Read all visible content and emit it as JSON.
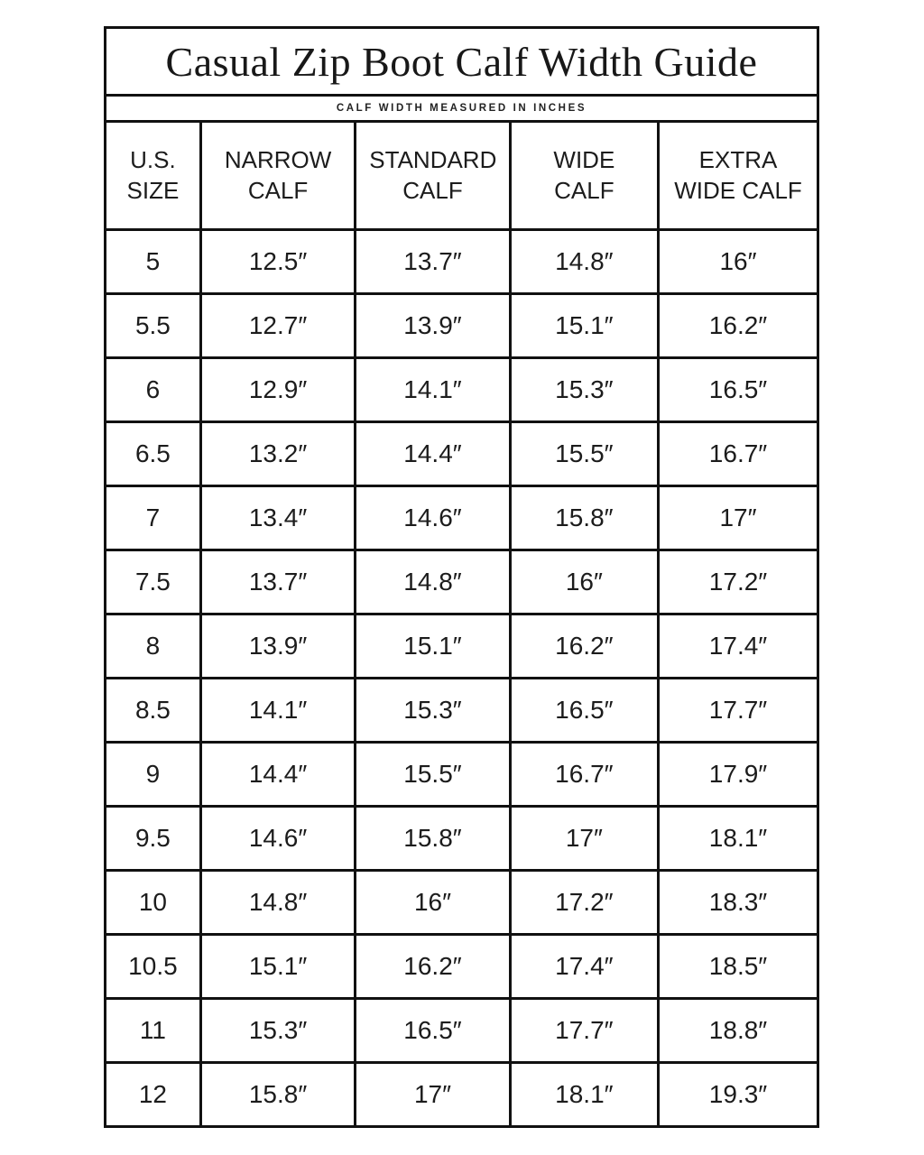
{
  "title": "Casual Zip Boot Calf Width Guide",
  "subtitle": "CALF WIDTH MEASURED IN INCHES",
  "colors": {
    "background": "#ffffff",
    "border": "#111111",
    "text": "#1c1c1c"
  },
  "table": {
    "headers": [
      "U.S. SIZE",
      "NARROW CALF",
      "STANDARD CALF",
      "WIDE CALF",
      "EXTRA WIDE CALF"
    ],
    "rows": [
      [
        "5",
        "12.5″",
        "13.7″",
        "14.8″",
        "16″"
      ],
      [
        "5.5",
        "12.7″",
        "13.9″",
        "15.1″",
        "16.2″"
      ],
      [
        "6",
        "12.9″",
        "14.1″",
        "15.3″",
        "16.5″"
      ],
      [
        "6.5",
        "13.2″",
        "14.4″",
        "15.5″",
        "16.7″"
      ],
      [
        "7",
        "13.4″",
        "14.6″",
        "15.8″",
        "17″"
      ],
      [
        "7.5",
        "13.7″",
        "14.8″",
        "16″",
        "17.2″"
      ],
      [
        "8",
        "13.9″",
        "15.1″",
        "16.2″",
        "17.4″"
      ],
      [
        "8.5",
        "14.1″",
        "15.3″",
        "16.5″",
        "17.7″"
      ],
      [
        "9",
        "14.4″",
        "15.5″",
        "16.7″",
        "17.9″"
      ],
      [
        "9.5",
        "14.6″",
        "15.8″",
        "17″",
        "18.1″"
      ],
      [
        "10",
        "14.8″",
        "16″",
        "17.2″",
        "18.3″"
      ],
      [
        "10.5",
        "15.1″",
        "16.2″",
        "17.4″",
        "18.5″"
      ],
      [
        "11",
        "15.3″",
        "16.5″",
        "17.7″",
        "18.8″"
      ],
      [
        "12",
        "15.8″",
        "17″",
        "18.1″",
        "19.3″"
      ]
    ]
  },
  "chart_data": {
    "type": "table",
    "title": "Casual Zip Boot Calf Width Guide",
    "subtitle": "CALF WIDTH MEASURED IN INCHES",
    "columns": [
      "U.S. SIZE",
      "NARROW CALF",
      "STANDARD CALF",
      "WIDE CALF",
      "EXTRA WIDE CALF"
    ],
    "categories": [
      "5",
      "5.5",
      "6",
      "6.5",
      "7",
      "7.5",
      "8",
      "8.5",
      "9",
      "9.5",
      "10",
      "10.5",
      "11",
      "12"
    ],
    "series": [
      {
        "name": "NARROW CALF",
        "unit": "inches",
        "values": [
          12.5,
          12.7,
          12.9,
          13.2,
          13.4,
          13.7,
          13.9,
          14.1,
          14.4,
          14.6,
          14.8,
          15.1,
          15.3,
          15.8
        ]
      },
      {
        "name": "STANDARD CALF",
        "unit": "inches",
        "values": [
          13.7,
          13.9,
          14.1,
          14.4,
          14.6,
          14.8,
          15.1,
          15.3,
          15.5,
          15.8,
          16.0,
          16.2,
          16.5,
          17.0
        ]
      },
      {
        "name": "WIDE CALF",
        "unit": "inches",
        "values": [
          14.8,
          15.1,
          15.3,
          15.5,
          15.8,
          16.0,
          16.2,
          16.5,
          16.7,
          17.0,
          17.2,
          17.4,
          17.7,
          18.1
        ]
      },
      {
        "name": "EXTRA WIDE CALF",
        "unit": "inches",
        "values": [
          16.0,
          16.2,
          16.5,
          16.7,
          17.0,
          17.2,
          17.4,
          17.7,
          17.9,
          18.1,
          18.3,
          18.5,
          18.8,
          19.3
        ]
      }
    ]
  }
}
